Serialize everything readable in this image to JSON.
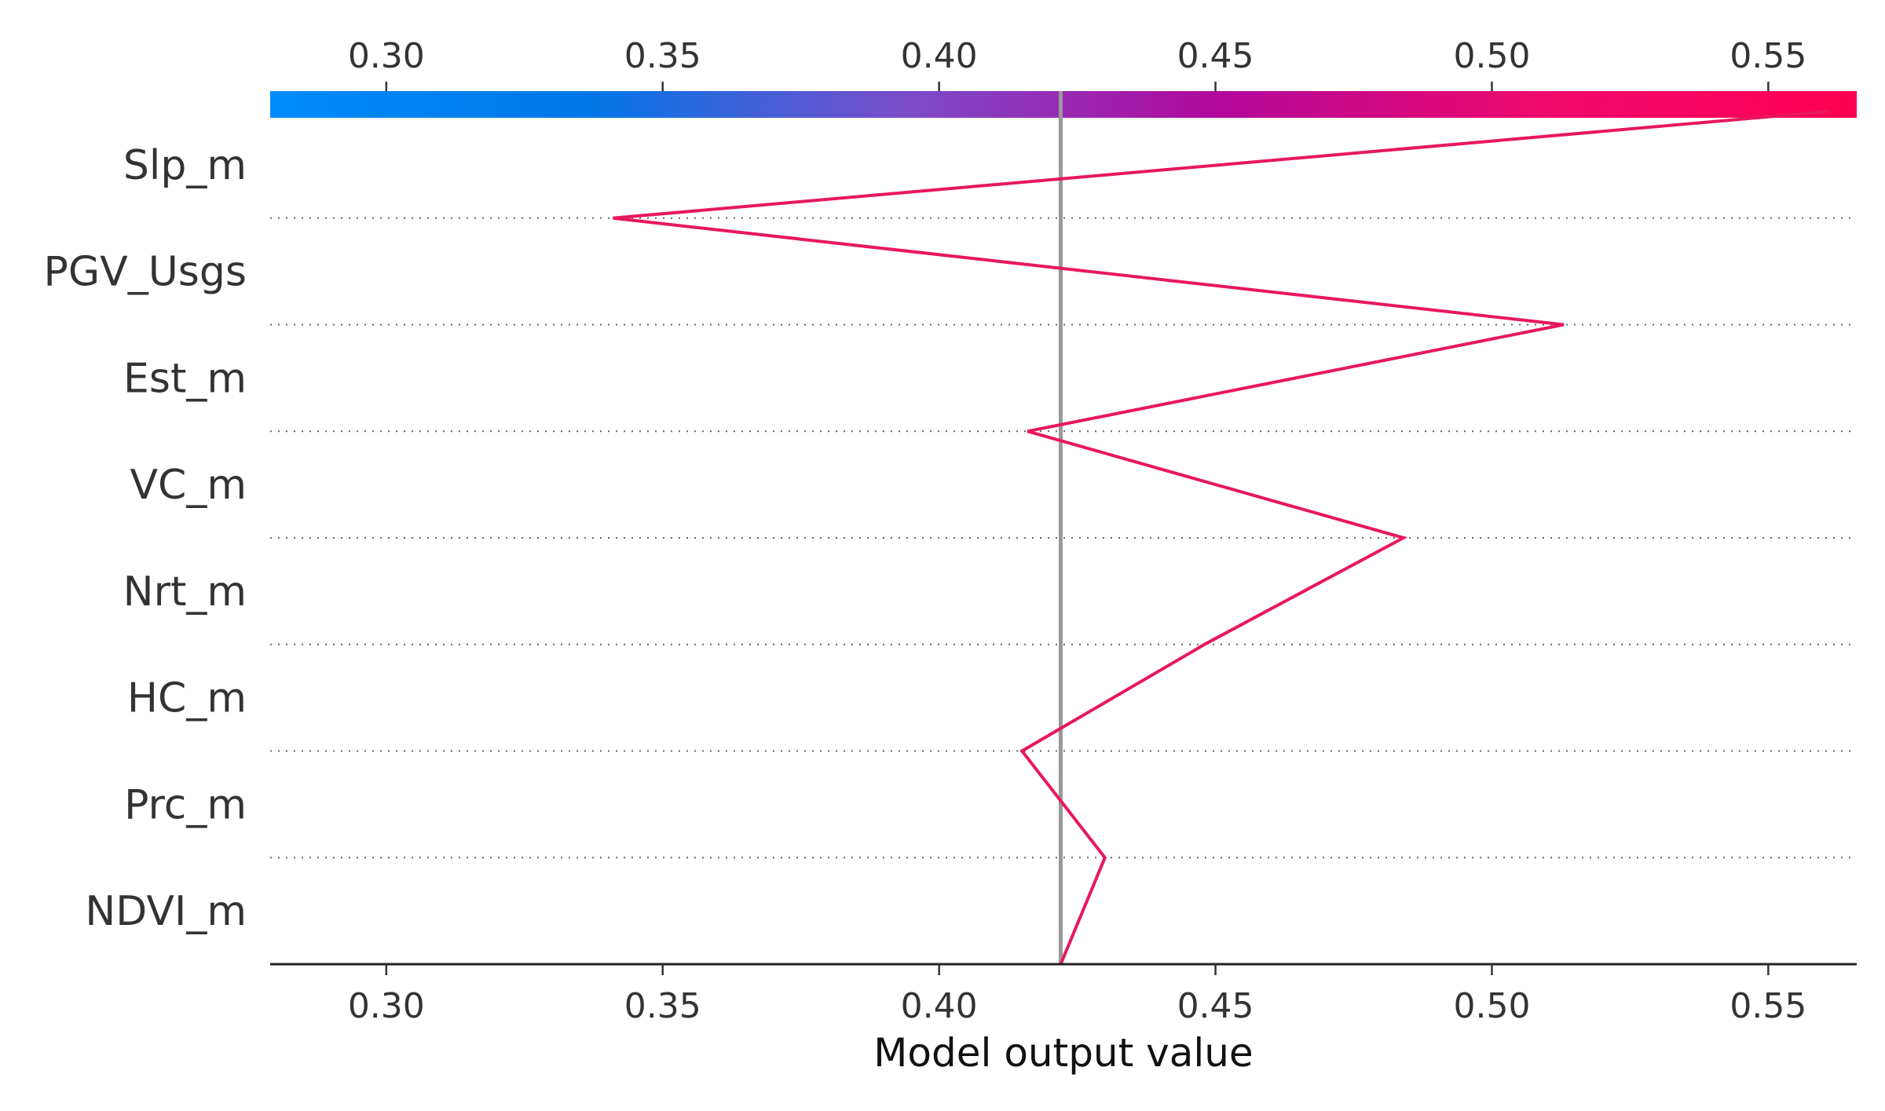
{
  "chart_data": {
    "type": "line",
    "subtype": "shap-decision-plot",
    "xlabel": "Model output value",
    "xlim": [
      0.279,
      0.566
    ],
    "x_ticks": [
      "0.30",
      "0.35",
      "0.40",
      "0.45",
      "0.50",
      "0.55"
    ],
    "x_tick_values": [
      0.3,
      0.35,
      0.4,
      0.45,
      0.5,
      0.55
    ],
    "ticks_on_top_and_bottom": true,
    "features_top_to_bottom": [
      "Slp_m",
      "PGV_Usgs",
      "Est_m",
      "VC_m",
      "Nrt_m",
      "HC_m",
      "Prc_m",
      "NDVI_m"
    ],
    "base_value": 0.422,
    "path_bottom_to_top": [
      0.422,
      0.43,
      0.415,
      0.448,
      0.484,
      0.416,
      0.513,
      0.341,
      0.561
    ],
    "line_color": "#e8175d",
    "base_line_color": "#999999",
    "colorbar": {
      "range": [
        0.279,
        0.566
      ],
      "colors": [
        "#008bfb",
        "#0077e8",
        "#7b4cc9",
        "#b3079b",
        "#ee0a6c",
        "#ff0052"
      ]
    },
    "grid": "dotted horizontal separators"
  }
}
